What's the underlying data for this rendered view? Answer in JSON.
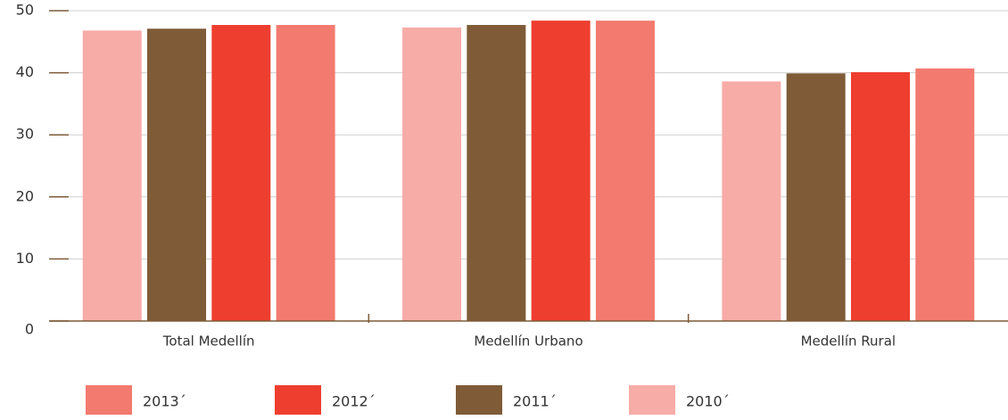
{
  "chart_data": {
    "type": "bar",
    "categories": [
      "Total Medellín",
      "Medellín Urbano",
      "Medellín Rural"
    ],
    "series": [
      {
        "name": "2010´",
        "color": "#f7aca8",
        "values": [
          46.8,
          47.3,
          38.6
        ]
      },
      {
        "name": "2011´",
        "color": "#7f5b37",
        "values": [
          47.1,
          47.7,
          39.9
        ]
      },
      {
        "name": "2012´",
        "color": "#ee3e2f",
        "values": [
          47.7,
          48.4,
          40.1
        ]
      },
      {
        "name": "2013´",
        "color": "#f27a6e",
        "values": [
          47.7,
          48.4,
          40.7
        ]
      }
    ],
    "ylim": [
      0,
      50
    ],
    "yticks": [
      0,
      10,
      20,
      30,
      40,
      50
    ],
    "grid": true
  }
}
